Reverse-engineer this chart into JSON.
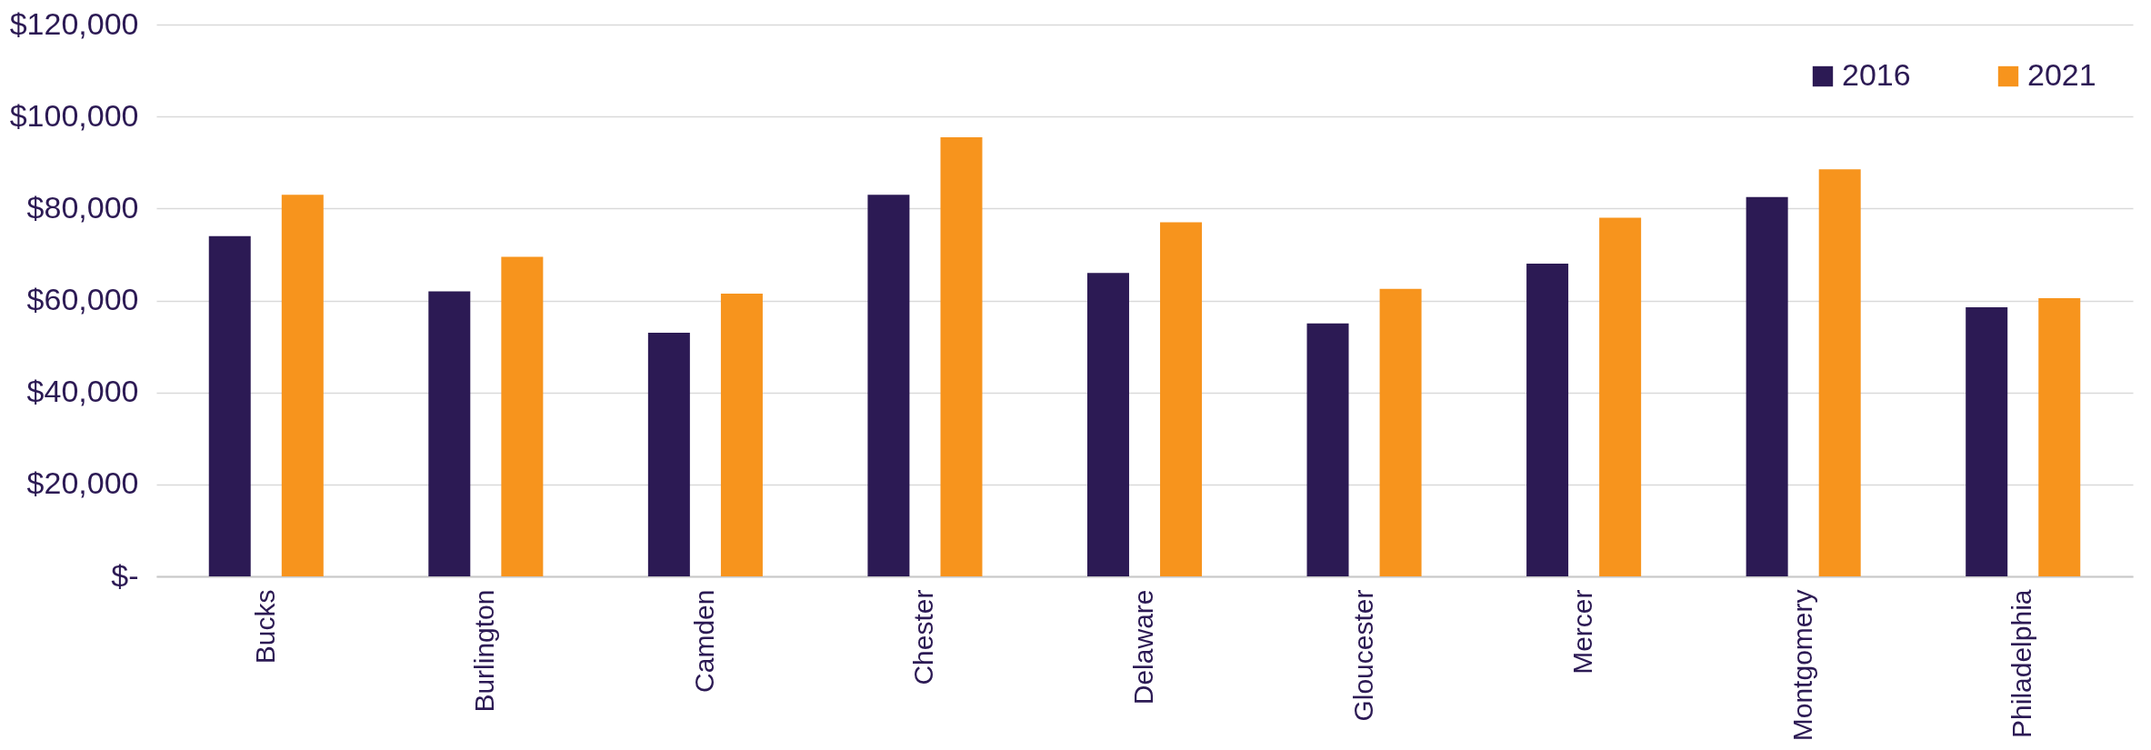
{
  "chart_data": {
    "type": "bar",
    "categories": [
      "Bucks",
      "Burlington",
      "Camden",
      "Chester",
      "Delaware",
      "Gloucester",
      "Mercer",
      "Montgomery",
      "Philadelphia"
    ],
    "series": [
      {
        "name": "2016",
        "color": "#2c1a54",
        "values": [
          74000,
          62000,
          53000,
          83000,
          66000,
          55000,
          68000,
          82500,
          58500
        ]
      },
      {
        "name": "2021",
        "color": "#f7941d",
        "values": [
          83000,
          69500,
          61500,
          95500,
          77000,
          62500,
          78000,
          88500,
          60500
        ]
      }
    ],
    "ylim": [
      0,
      120000
    ],
    "yticks": [
      {
        "value": 0,
        "label": "$-"
      },
      {
        "value": 20000,
        "label": "$20,000"
      },
      {
        "value": 40000,
        "label": "$40,000"
      },
      {
        "value": 60000,
        "label": "$60,000"
      },
      {
        "value": 80000,
        "label": "$80,000"
      },
      {
        "value": 100000,
        "label": "$100,000"
      },
      {
        "value": 120000,
        "label": "$120,000"
      }
    ],
    "grid": "y",
    "legend": "top right"
  }
}
